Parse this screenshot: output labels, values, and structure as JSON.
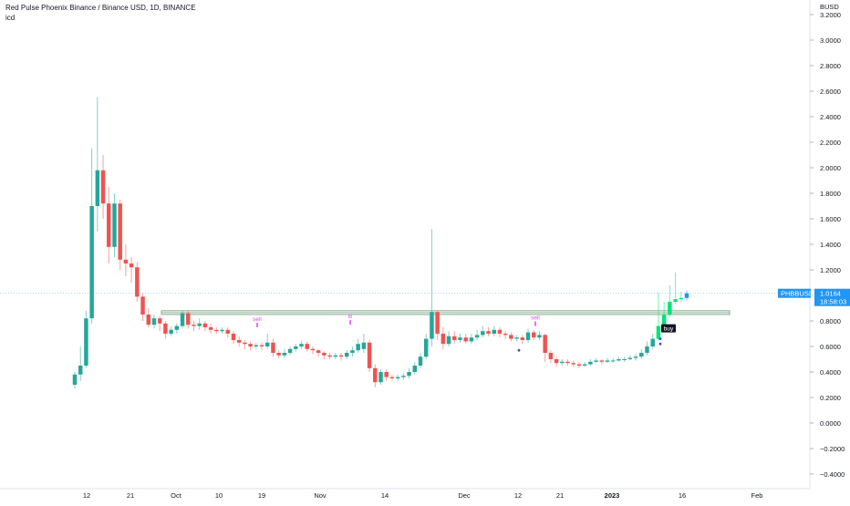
{
  "header": {
    "title": "Red Pulse Phoenix Binance / Binance USD, 1D, BINANCE",
    "indicator": "icd"
  },
  "axis": {
    "currency": "BUSD"
  },
  "price_tag": {
    "symbol": "PHBBUSD",
    "price": "1.0164",
    "countdown": "18:58:03"
  },
  "markers": [
    {
      "text": "sell",
      "x": "2022-09-19",
      "color": "#e040fb"
    },
    {
      "text": "B",
      "x": "2022-11-08",
      "color": "#e040fb"
    },
    {
      "text": "sell",
      "x": "2022-12-16",
      "color": "#e040fb"
    },
    {
      "text": "buy",
      "x": "2023-01-11",
      "color": "#131722"
    }
  ],
  "colors": {
    "up": "#26a69a",
    "down": "#ef5350",
    "highlight_up": "#00e676",
    "highlight_down": "#d50000",
    "signal": "#e040fb",
    "last_bar": "#2196f3"
  },
  "chart_data": {
    "type": "candlestick",
    "yrange": [
      -0.45,
      3.3
    ],
    "yticks": [
      -0.4,
      -0.2,
      0.0,
      0.2,
      0.4,
      0.6,
      0.8,
      1.0,
      1.2,
      1.4,
      1.6,
      1.8,
      2.0,
      2.2,
      2.4,
      2.6,
      2.8,
      3.0,
      3.2
    ],
    "ytick_labels": [
      "−0.4000",
      "−0.2000",
      "0.0000",
      "0.2000",
      "0.4000",
      "0.6000",
      "0.8000",
      "1.0000",
      "1.2000",
      "1.4000",
      "1.6000",
      "1.8000",
      "2.0000",
      "2.2000",
      "2.4000",
      "2.6000",
      "2.8000",
      "3.0000",
      "3.2000"
    ],
    "xlabels": [
      "12",
      "21",
      "Oct",
      "10",
      "19",
      "Nov",
      "14",
      "Dec",
      "12",
      "21",
      "2023",
      "16",
      "Feb"
    ],
    "current_price": 1.0164,
    "support_zone": [
      0.85,
      0.88
    ],
    "candles": [
      [
        0.3,
        0.38,
        0.27,
        0.4
      ],
      [
        0.38,
        0.45,
        0.33,
        0.6
      ],
      [
        0.45,
        0.82,
        0.43,
        0.88
      ],
      [
        0.82,
        1.7,
        0.78,
        2.15
      ],
      [
        1.7,
        1.98,
        1.5,
        2.55
      ],
      [
        1.98,
        1.72,
        1.6,
        2.1
      ],
      [
        1.72,
        1.38,
        1.25,
        1.85
      ],
      [
        1.38,
        1.72,
        1.3,
        1.8
      ],
      [
        1.72,
        1.28,
        1.2,
        1.75
      ],
      [
        1.28,
        1.25,
        1.15,
        1.4
      ],
      [
        1.25,
        1.22,
        1.1,
        1.3
      ],
      [
        1.22,
        0.99,
        0.95,
        1.26
      ],
      [
        0.99,
        0.85,
        0.8,
        1.02
      ],
      [
        0.85,
        0.77,
        0.75,
        0.9
      ],
      [
        0.77,
        0.82,
        0.74,
        0.85
      ],
      [
        0.82,
        0.78,
        0.72,
        0.84
      ],
      [
        0.78,
        0.7,
        0.66,
        0.8
      ],
      [
        0.7,
        0.73,
        0.68,
        0.76
      ],
      [
        0.73,
        0.76,
        0.7,
        0.78
      ],
      [
        0.76,
        0.86,
        0.74,
        0.88
      ],
      [
        0.86,
        0.77,
        0.74,
        0.88
      ],
      [
        0.77,
        0.76,
        0.72,
        0.8
      ],
      [
        0.76,
        0.78,
        0.73,
        0.82
      ],
      [
        0.78,
        0.75,
        0.72,
        0.8
      ],
      [
        0.75,
        0.73,
        0.7,
        0.78
      ],
      [
        0.73,
        0.72,
        0.7,
        0.75
      ],
      [
        0.72,
        0.73,
        0.7,
        0.75
      ],
      [
        0.73,
        0.7,
        0.67,
        0.75
      ],
      [
        0.7,
        0.65,
        0.62,
        0.72
      ],
      [
        0.65,
        0.63,
        0.6,
        0.68
      ],
      [
        0.63,
        0.62,
        0.58,
        0.65
      ],
      [
        0.62,
        0.6,
        0.57,
        0.64
      ],
      [
        0.6,
        0.61,
        0.58,
        0.63
      ],
      [
        0.61,
        0.6,
        0.57,
        0.63
      ],
      [
        0.6,
        0.63,
        0.58,
        0.7
      ],
      [
        0.63,
        0.55,
        0.52,
        0.66
      ],
      [
        0.55,
        0.53,
        0.51,
        0.57
      ],
      [
        0.53,
        0.55,
        0.51,
        0.58
      ],
      [
        0.55,
        0.58,
        0.53,
        0.6
      ],
      [
        0.58,
        0.6,
        0.56,
        0.62
      ],
      [
        0.6,
        0.62,
        0.58,
        0.64
      ],
      [
        0.62,
        0.58,
        0.56,
        0.64
      ],
      [
        0.58,
        0.57,
        0.54,
        0.6
      ],
      [
        0.57,
        0.55,
        0.52,
        0.58
      ],
      [
        0.55,
        0.53,
        0.5,
        0.56
      ],
      [
        0.53,
        0.52,
        0.5,
        0.55
      ],
      [
        0.52,
        0.53,
        0.5,
        0.55
      ],
      [
        0.53,
        0.52,
        0.49,
        0.55
      ],
      [
        0.52,
        0.55,
        0.5,
        0.57
      ],
      [
        0.55,
        0.57,
        0.52,
        0.6
      ],
      [
        0.57,
        0.62,
        0.55,
        0.66
      ],
      [
        0.58,
        0.63,
        0.55,
        0.7
      ],
      [
        0.63,
        0.43,
        0.4,
        0.65
      ],
      [
        0.43,
        0.32,
        0.28,
        0.46
      ],
      [
        0.32,
        0.4,
        0.3,
        0.42
      ],
      [
        0.4,
        0.36,
        0.33,
        0.42
      ],
      [
        0.36,
        0.35,
        0.33,
        0.38
      ],
      [
        0.35,
        0.36,
        0.33,
        0.38
      ],
      [
        0.36,
        0.37,
        0.34,
        0.39
      ],
      [
        0.37,
        0.4,
        0.35,
        0.43
      ],
      [
        0.4,
        0.45,
        0.38,
        0.48
      ],
      [
        0.45,
        0.52,
        0.43,
        0.55
      ],
      [
        0.52,
        0.66,
        0.5,
        0.7
      ],
      [
        0.66,
        0.87,
        0.6,
        1.52
      ],
      [
        0.87,
        0.7,
        0.65,
        0.88
      ],
      [
        0.7,
        0.62,
        0.58,
        0.75
      ],
      [
        0.62,
        0.68,
        0.6,
        0.72
      ],
      [
        0.68,
        0.65,
        0.62,
        0.72
      ],
      [
        0.65,
        0.67,
        0.63,
        0.7
      ],
      [
        0.67,
        0.64,
        0.62,
        0.7
      ],
      [
        0.64,
        0.67,
        0.62,
        0.7
      ],
      [
        0.67,
        0.69,
        0.65,
        0.73
      ],
      [
        0.69,
        0.72,
        0.67,
        0.76
      ],
      [
        0.72,
        0.7,
        0.68,
        0.75
      ],
      [
        0.7,
        0.73,
        0.68,
        0.76
      ],
      [
        0.73,
        0.7,
        0.67,
        0.75
      ],
      [
        0.7,
        0.69,
        0.66,
        0.72
      ],
      [
        0.69,
        0.66,
        0.64,
        0.71
      ],
      [
        0.66,
        0.67,
        0.64,
        0.69
      ],
      [
        0.67,
        0.65,
        0.62,
        0.69
      ],
      [
        0.65,
        0.71,
        0.63,
        0.74
      ],
      [
        0.71,
        0.67,
        0.65,
        0.73
      ],
      [
        0.67,
        0.69,
        0.65,
        0.72
      ],
      [
        0.69,
        0.55,
        0.48,
        0.7
      ],
      [
        0.55,
        0.5,
        0.47,
        0.57
      ],
      [
        0.5,
        0.47,
        0.44,
        0.52
      ],
      [
        0.47,
        0.48,
        0.45,
        0.5
      ],
      [
        0.48,
        0.47,
        0.45,
        0.5
      ],
      [
        0.47,
        0.46,
        0.44,
        0.49
      ],
      [
        0.46,
        0.45,
        0.43,
        0.48
      ],
      [
        0.45,
        0.46,
        0.44,
        0.48
      ],
      [
        0.46,
        0.48,
        0.45,
        0.5
      ],
      [
        0.48,
        0.49,
        0.47,
        0.51
      ],
      [
        0.49,
        0.48,
        0.46,
        0.5
      ],
      [
        0.48,
        0.49,
        0.47,
        0.51
      ],
      [
        0.49,
        0.49,
        0.47,
        0.51
      ],
      [
        0.49,
        0.5,
        0.48,
        0.52
      ],
      [
        0.5,
        0.5,
        0.48,
        0.52
      ],
      [
        0.5,
        0.51,
        0.49,
        0.53
      ],
      [
        0.51,
        0.52,
        0.49,
        0.54
      ],
      [
        0.52,
        0.55,
        0.5,
        0.58
      ],
      [
        0.55,
        0.6,
        0.53,
        0.64
      ],
      [
        0.6,
        0.66,
        0.58,
        0.7
      ],
      [
        0.66,
        0.76,
        0.64,
        1.02
      ],
      [
        0.76,
        0.85,
        0.74,
        0.95
      ],
      [
        0.85,
        0.95,
        0.83,
        1.08
      ],
      [
        0.95,
        0.97,
        0.93,
        1.18
      ],
      [
        0.97,
        0.98,
        0.95,
        1.03
      ],
      [
        0.98,
        1.0164,
        0.96,
        1.04
      ]
    ]
  }
}
